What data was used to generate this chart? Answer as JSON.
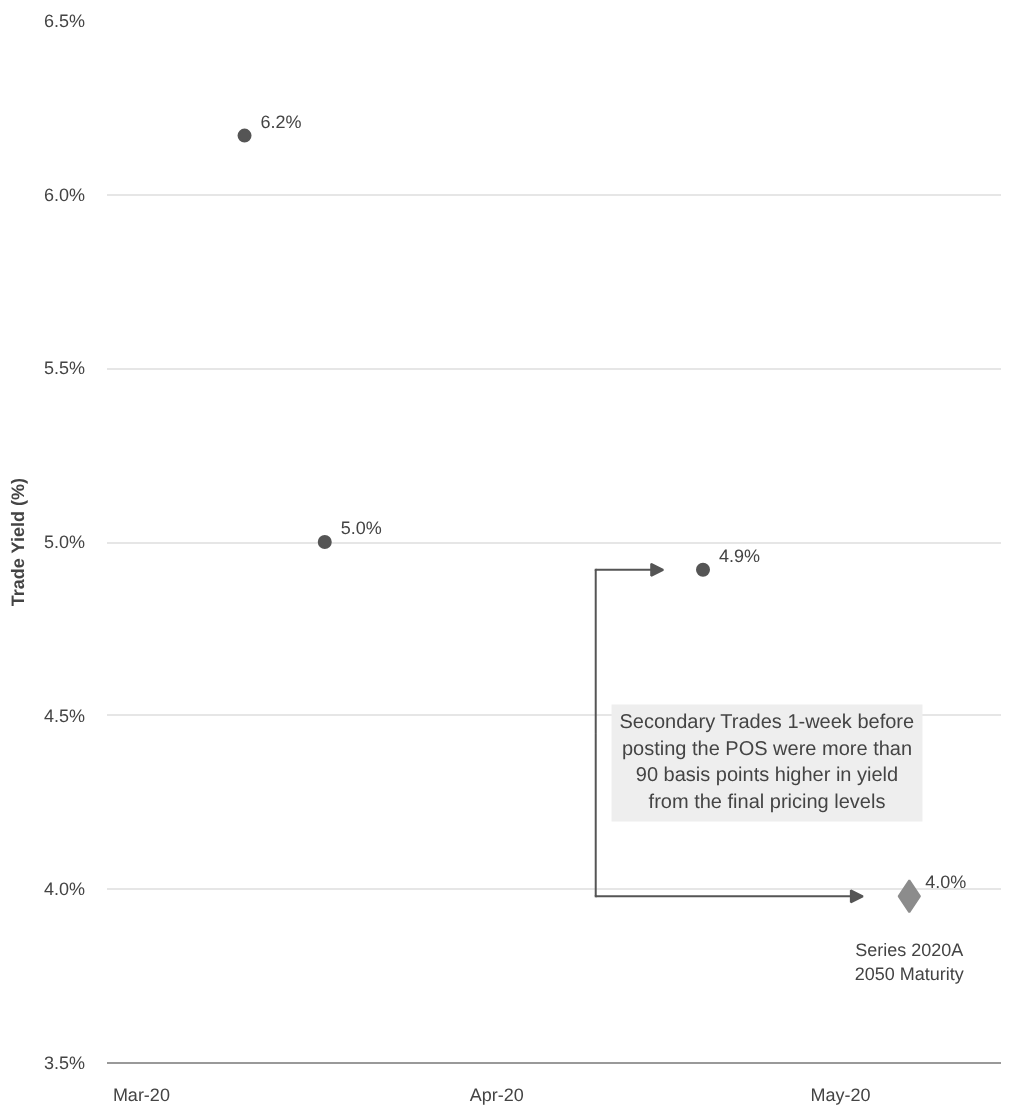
{
  "chart_data": {
    "type": "scatter",
    "ylabel": "Trade Yield (%)",
    "series": [
      {
        "color": "#555555",
        "marker": "circle",
        "x": [
          "2020-03-10",
          "2020-03-17",
          "2020-04-19"
        ],
        "values": [
          6.17,
          5.0,
          4.92
        ],
        "value_labels": [
          "6.2%",
          "5.0%",
          "4.9%"
        ]
      },
      {
        "color": "#8c8c8c",
        "marker": "diamond",
        "x": [
          "2020-05-07"
        ],
        "values": [
          3.98
        ],
        "value_labels": [
          "4.0%"
        ]
      }
    ],
    "xlim": [
      "2020-02-27",
      "2020-05-15"
    ],
    "xticks": [
      {
        "value": "2020-03-01",
        "label": "Mar-20"
      },
      {
        "value": "2020-04-01",
        "label": "Apr-20"
      },
      {
        "value": "2020-05-01",
        "label": "May-20"
      }
    ],
    "ylim": [
      3.5,
      6.5
    ],
    "yticks": [
      {
        "value": 3.5,
        "label": "3.5%"
      },
      {
        "value": 4.0,
        "label": "4.0%"
      },
      {
        "value": 4.5,
        "label": "4.5%"
      },
      {
        "value": 5.0,
        "label": "5.0%"
      },
      {
        "value": 5.5,
        "label": "5.5%"
      },
      {
        "value": 6.0,
        "label": "6.0%"
      },
      {
        "value": 6.5,
        "label": "6.5%"
      }
    ],
    "grid": "y",
    "annotations": [
      "Secondary Trades 1-week before\nposting the POS were more than\n90 basis points higher in yield\nfrom the final pricing levels",
      {
        "text": "Series 2020A\n2050 Maturity",
        "x": "2020-05-07",
        "y": 3.98
      }
    ]
  }
}
